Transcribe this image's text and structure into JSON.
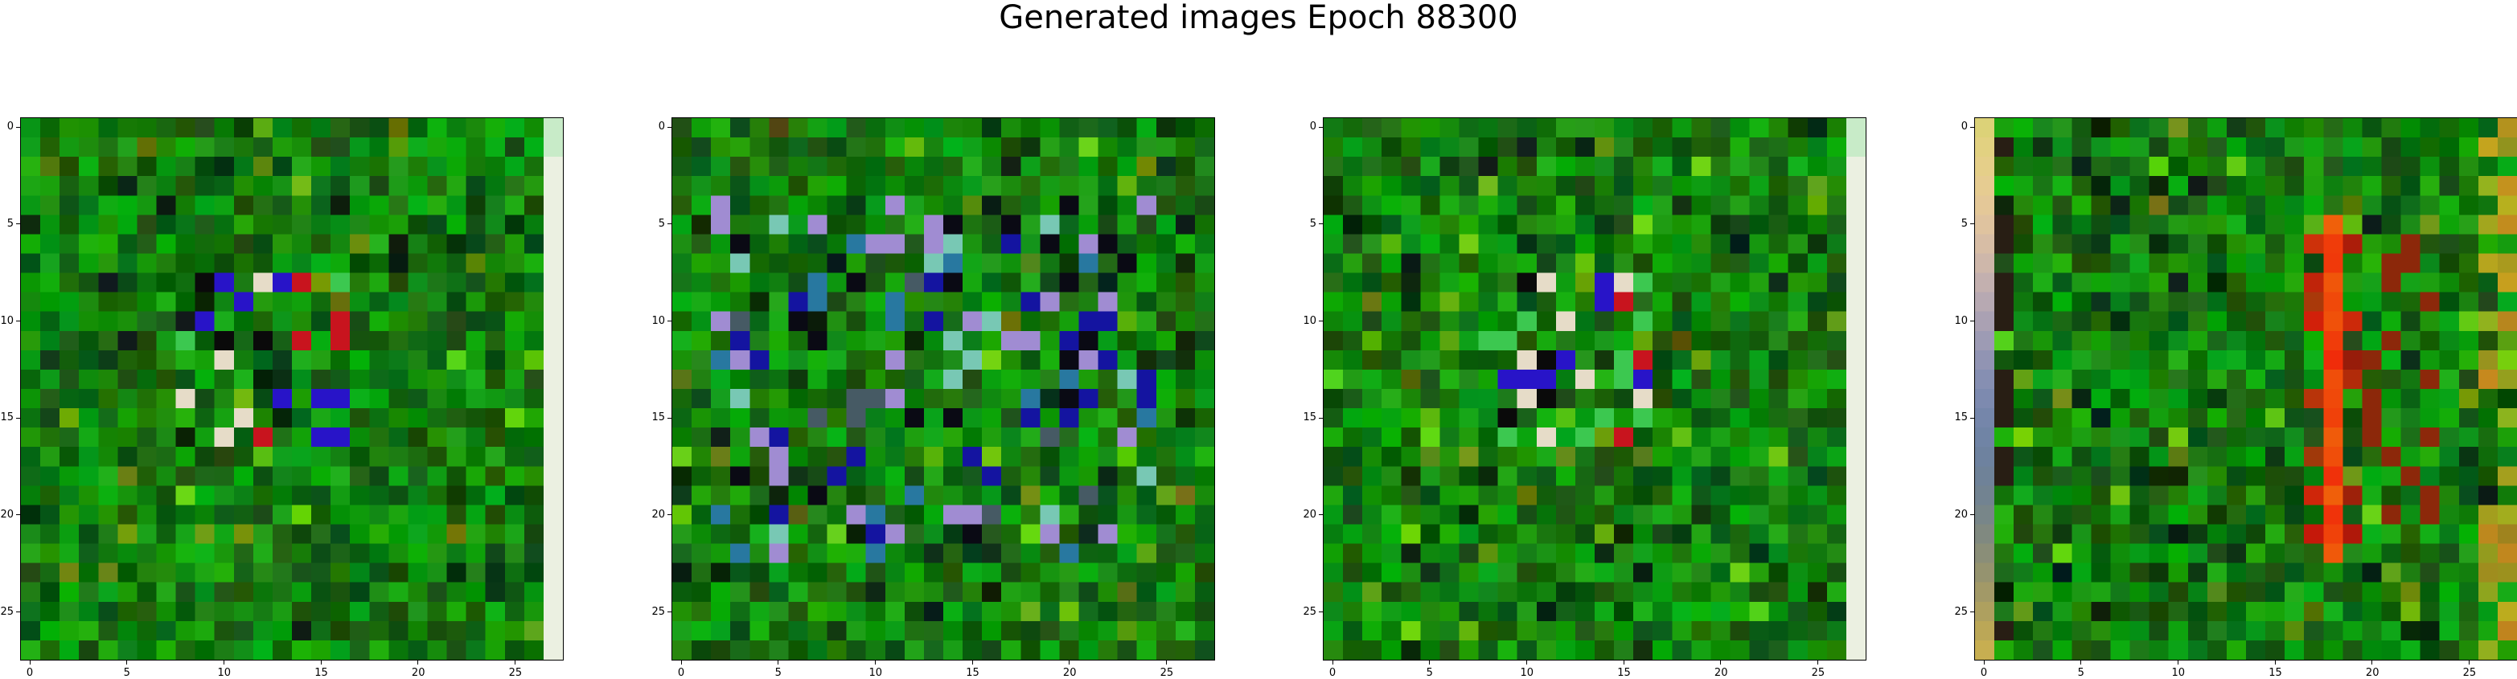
{
  "figure": {
    "title": "Generated images Epoch 88300"
  },
  "axes": {
    "x_ticks": [
      "0",
      "5",
      "10",
      "15",
      "20",
      "25"
    ],
    "y_ticks": [
      "0",
      "5",
      "10",
      "15",
      "20",
      "25"
    ],
    "grid_size": 28
  },
  "panels": [
    {
      "id": "panel-1",
      "palette": "green-noise-center-spot",
      "right_edge": "light"
    },
    {
      "id": "panel-2",
      "palette": "green-noise-blue-spots",
      "right_edge": "none"
    },
    {
      "id": "panel-3",
      "palette": "green-noise-center-spot",
      "right_edge": "light"
    },
    {
      "id": "panel-4",
      "palette": "green-noise-red-stripe",
      "right_edge": "none"
    }
  ]
}
